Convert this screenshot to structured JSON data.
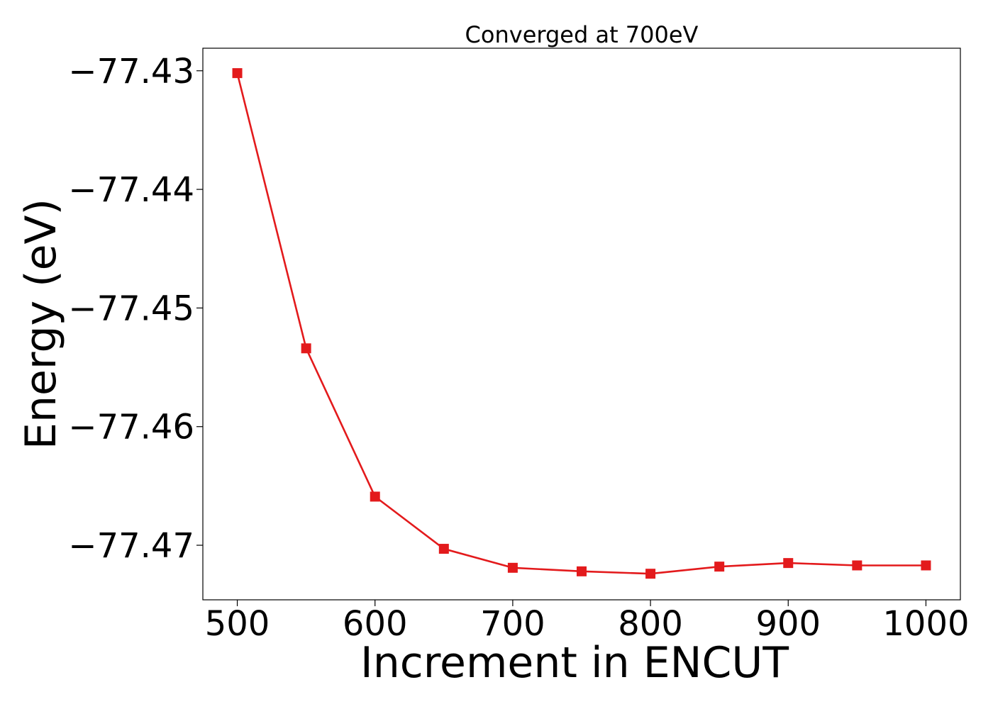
{
  "chart_data": {
    "type": "line",
    "title": "Converged at 700eV",
    "xlabel": "Increment in ENCUT",
    "ylabel": "Energy (eV)",
    "x": [
      500,
      550,
      600,
      650,
      700,
      750,
      800,
      850,
      900,
      950,
      1000
    ],
    "series": [
      {
        "values": [
          -77.4302,
          -77.4534,
          -77.4659,
          -77.4703,
          -77.4719,
          -77.4722,
          -77.4724,
          -77.4718,
          -77.4715,
          -77.4717,
          -77.4717
        ],
        "color": "#e31a1c",
        "marker": "square"
      }
    ],
    "xlim": [
      475,
      1025
    ],
    "ylim": [
      -77.4746,
      -77.4281
    ],
    "xticks": [
      500,
      600,
      700,
      800,
      900,
      1000
    ],
    "xtick_labels": [
      "500",
      "600",
      "700",
      "800",
      "900",
      "1000"
    ],
    "yticks": [
      -77.43,
      -77.44,
      -77.45,
      -77.46,
      -77.47
    ],
    "ytick_labels": [
      "−77.43",
      "−77.44",
      "−77.45",
      "−77.46",
      "−77.47"
    ],
    "grid": false,
    "legend": "none"
  }
}
